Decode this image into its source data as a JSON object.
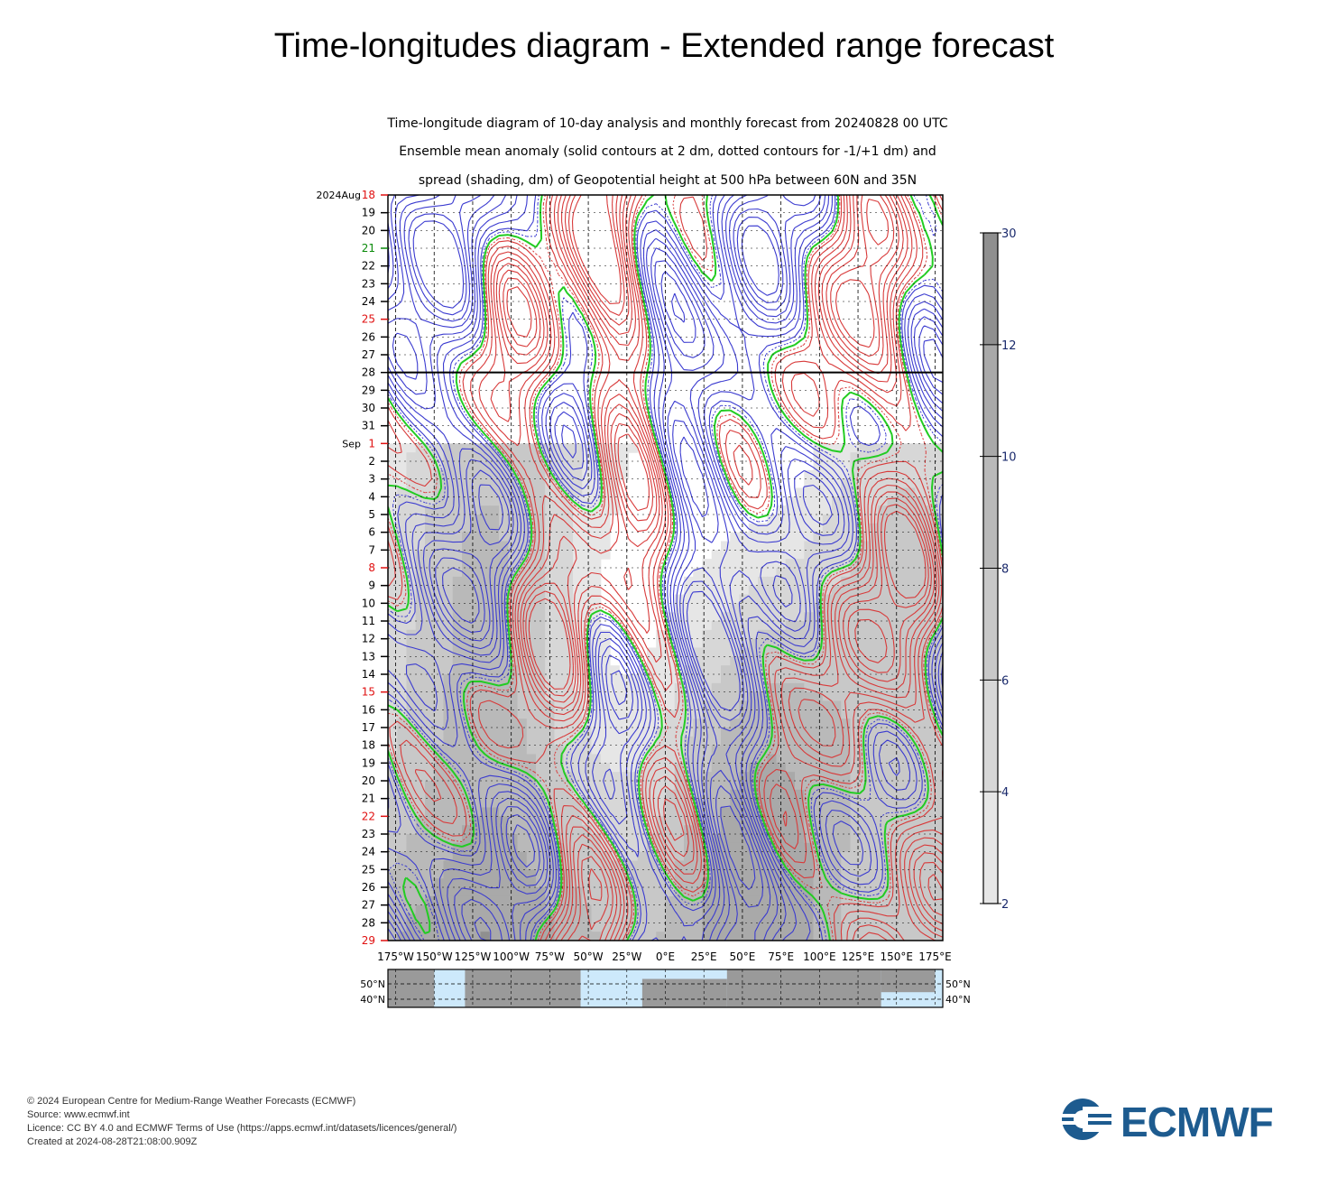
{
  "page": {
    "title": "Time-longitudes diagram - Extended range forecast"
  },
  "chart_data": {
    "type": "heatmap",
    "subtitle_lines": [
      "Time-longitude diagram of 10-day analysis and monthly forecast from 20240828 00 UTC",
      "Ensemble mean anomaly (solid contours at 2 dm, dotted contours for -1/+1 dm) and",
      "spread (shading, dm) of Geopotential height at 500 hPa between 60N and 35N"
    ],
    "x_tick_labels": [
      "175°W",
      "150°W",
      "125°W",
      "100°W",
      "75°W",
      "50°W",
      "25°W",
      "0°E",
      "25°E",
      "50°E",
      "75°E",
      "100°E",
      "125°E",
      "150°E",
      "175°E"
    ],
    "xlim": [
      -180,
      180
    ],
    "time_axis": {
      "start": "2024-08-18",
      "end": "2024-09-29",
      "analysis_boundary": "2024-08-28",
      "first_label": "2024Aug",
      "sep_label": "Sep",
      "aug_days": [
        "18",
        "19",
        "20",
        "21",
        "22",
        "23",
        "24",
        "25",
        "26",
        "27",
        "28",
        "29",
        "30",
        "31"
      ],
      "sep_days": [
        "1",
        "2",
        "3",
        "4",
        "5",
        "6",
        "7",
        "8",
        "9",
        "10",
        "11",
        "12",
        "13",
        "14",
        "15",
        "16",
        "17",
        "18",
        "19",
        "20",
        "21",
        "22",
        "23",
        "24",
        "25",
        "26",
        "27",
        "28",
        "29"
      ],
      "red_days": [
        "2024-08-18",
        "2024-08-25",
        "2024-09-01",
        "2024-09-08",
        "2024-09-15",
        "2024-09-22",
        "2024-09-29"
      ],
      "green_days": [
        "2024-08-21"
      ]
    },
    "colorbar": {
      "levels": [
        2,
        4,
        6,
        8,
        10,
        12,
        30
      ],
      "labels": [
        "2",
        "4",
        "6",
        "8",
        "10",
        "12",
        "30"
      ],
      "colors": [
        "#e6e6e6",
        "#d7d7d7",
        "#c8c8c8",
        "#b9b9b9",
        "#a9a9a9",
        "#8f8f8f"
      ]
    },
    "contour_colors": {
      "positive": "#d83a3a",
      "negative": "#3b3bd0",
      "zero": "#22cc22"
    },
    "map_strip": {
      "lat_labels": [
        "50°N",
        "40°N"
      ],
      "colors": {
        "ocean": "#cde9fb",
        "land": "#9a9a9a"
      }
    }
  },
  "footer": {
    "lines": [
      "© 2024 European Centre for Medium-Range Weather Forecasts (ECMWF)",
      "Source: www.ecmwf.int",
      "Licence: CC BY 4.0 and ECMWF Terms of Use (https://apps.ecmwf.int/datasets/licences/general/)",
      "Created at 2024-08-28T21:08:00.909Z"
    ]
  },
  "logo": {
    "text": "ECMWF",
    "color": "#1d5b8f"
  }
}
